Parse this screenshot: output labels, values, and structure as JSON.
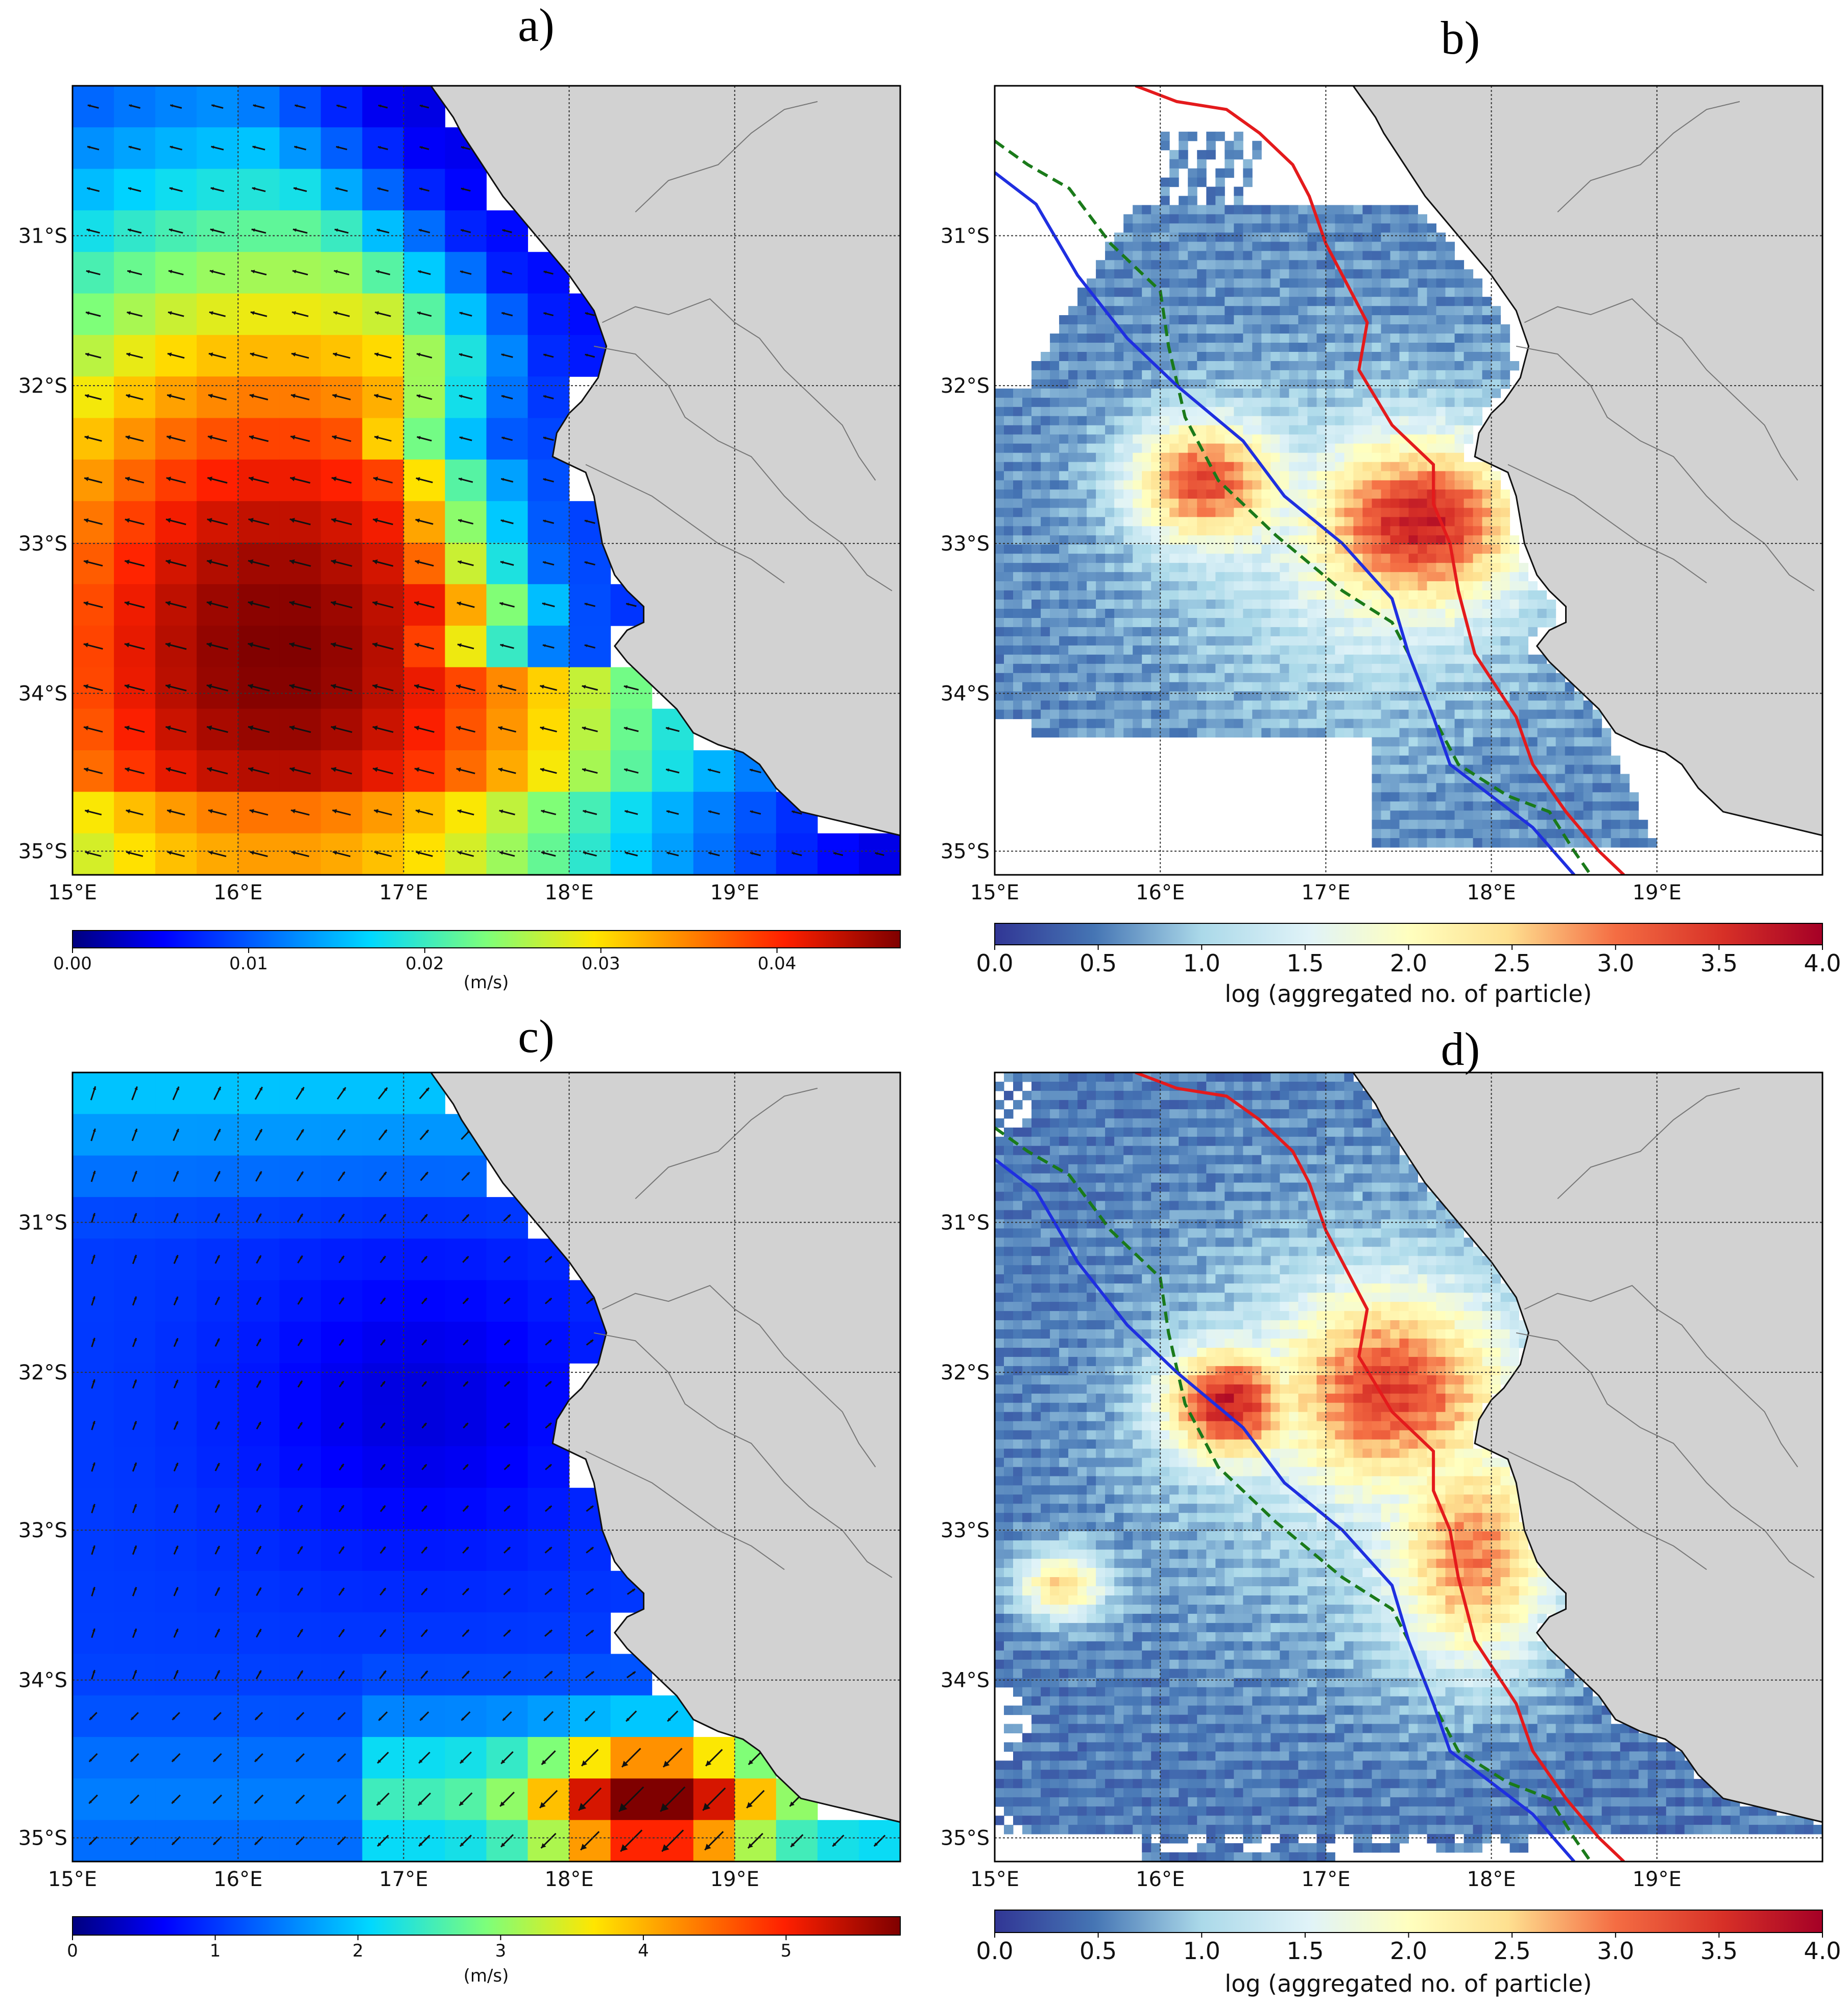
{
  "colors": {
    "land": "#d2d2d2",
    "coast": "#111111",
    "river": "#777777",
    "grid": "#333333",
    "red_line": "#e41a1c",
    "green_line": "#1a7a1a",
    "blue_line": "#1f2fe0"
  },
  "chart_data": [
    {
      "panel": "a)",
      "type": "heatmap",
      "field": "velocity",
      "x_ticks": [
        "15°E",
        "16°E",
        "17°E",
        "18°E",
        "19°E"
      ],
      "y_ticks": [
        "31°S",
        "32°S",
        "33°S",
        "34°S",
        "35°S"
      ],
      "xlim": [
        15,
        20
      ],
      "ylim": [
        -35.2,
        -30.2
      ],
      "colorbar": {
        "colormap": "jet",
        "range": [
          0,
          0.047
        ],
        "ticks": [
          "0.00",
          "0.01",
          "0.02",
          "0.03",
          "0.04"
        ],
        "label": "(m/s)"
      },
      "arrows": "shown",
      "features": "velocity vectors directed westward, max near 16.5°E 33.5°S"
    },
    {
      "panel": "b)",
      "type": "heatmap",
      "field": "particle density",
      "x_ticks": [
        "15°E",
        "16°E",
        "17°E",
        "18°E",
        "19°E"
      ],
      "y_ticks": [
        "31°S",
        "32°S",
        "33°S",
        "34°S",
        "35°S"
      ],
      "xlim": [
        15,
        20
      ],
      "ylim": [
        -35.2,
        -30.2
      ],
      "colorbar": {
        "colormap": "RdYlBu_r",
        "range": [
          0.0,
          4.0
        ],
        "ticks": [
          "0.0",
          "0.5",
          "1.0",
          "1.5",
          "2.0",
          "2.5",
          "3.0",
          "3.5",
          "4.0"
        ],
        "label": "log (aggregated no. of particle)"
      },
      "lines": [
        "red",
        "green-dashed",
        "blue"
      ]
    },
    {
      "panel": "c)",
      "type": "heatmap",
      "field": "velocity",
      "x_ticks": [
        "15°E",
        "16°E",
        "17°E",
        "18°E",
        "19°E"
      ],
      "y_ticks": [
        "31°S",
        "32°S",
        "33°S",
        "34°S",
        "35°S"
      ],
      "xlim": [
        15,
        20
      ],
      "ylim": [
        -35.2,
        -30.2
      ],
      "colorbar": {
        "colormap": "jet",
        "range": [
          0,
          5.8
        ],
        "ticks": [
          "0",
          "1",
          "2",
          "3",
          "4",
          "5"
        ],
        "label": "(m/s)"
      },
      "arrows": "shown",
      "features": "velocity vectors directed southwest, max near 18.5°E 34.7°S"
    },
    {
      "panel": "d)",
      "type": "heatmap",
      "field": "particle density",
      "x_ticks": [
        "15°E",
        "16°E",
        "17°E",
        "18°E",
        "19°E"
      ],
      "y_ticks": [
        "31°S",
        "32°S",
        "33°S",
        "34°S",
        "35°S"
      ],
      "xlim": [
        15,
        20
      ],
      "ylim": [
        -35.2,
        -30.2
      ],
      "colorbar": {
        "colormap": "RdYlBu_r",
        "range": [
          0.0,
          4.0
        ],
        "ticks": [
          "0.0",
          "0.5",
          "1.0",
          "1.5",
          "2.0",
          "2.5",
          "3.0",
          "3.5",
          "4.0"
        ],
        "label": "log (aggregated no. of particle)"
      },
      "lines": [
        "red",
        "green-dashed",
        "blue"
      ]
    }
  ]
}
